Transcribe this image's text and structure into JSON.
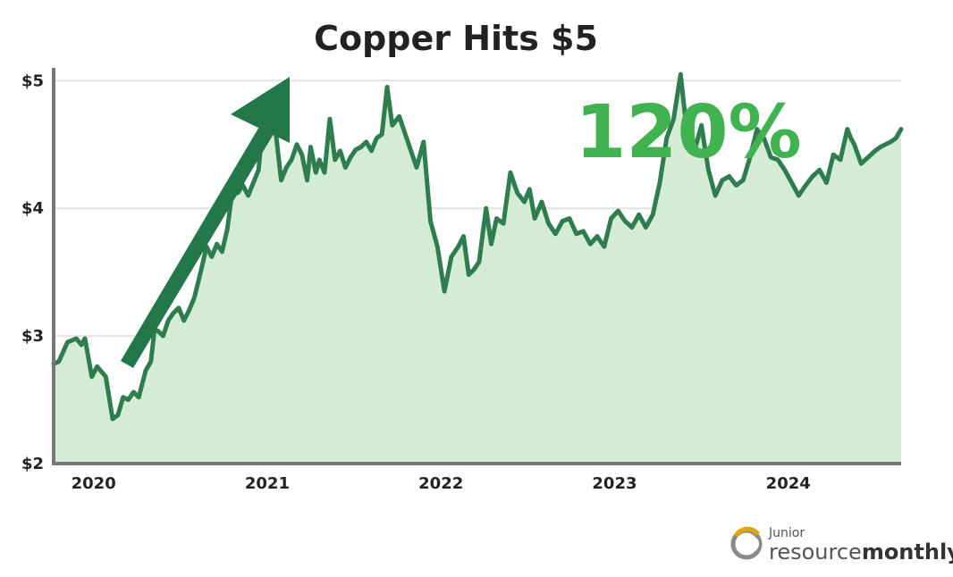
{
  "colors": {
    "line": "#2e7d4f",
    "fill": "#d4ecd3",
    "callout": "#3fb34f",
    "arrow": "#23784a",
    "axis": "#777777",
    "grid": "#e3e3e3"
  },
  "logo": {
    "line1": "Junior",
    "line2_regular": "resource",
    "line2_bold": "monthly",
    "icon": "ring-logo-icon"
  },
  "chart_data": {
    "type": "area",
    "title": "Copper Hits $5",
    "annotation": "120%",
    "xlabel": "",
    "ylabel": "",
    "x_ticks": [
      "2020",
      "2021",
      "2022",
      "2023",
      "2024"
    ],
    "x_tick_values": [
      2020.0,
      2021.0,
      2022.0,
      2023.0,
      2024.0
    ],
    "y_ticks": [
      "$2",
      "$3",
      "$4",
      "$5"
    ],
    "y_tick_values": [
      2,
      3,
      4,
      5
    ],
    "xlim": [
      2019.77,
      2024.65
    ],
    "ylim": [
      2,
      5.1
    ],
    "grid": true,
    "legend": "none",
    "series": [
      {
        "x": [
          2019.77,
          2019.8,
          2019.85,
          2019.9,
          2019.93,
          2019.95,
          2019.99,
          2020.02,
          2020.07,
          2020.11,
          2020.14,
          2020.17,
          2020.2,
          2020.23,
          2020.26,
          2020.3,
          2020.33,
          2020.35,
          2020.37,
          2020.4,
          2020.43,
          2020.46,
          2020.49,
          2020.52,
          2020.55,
          2020.58,
          2020.62,
          2020.65,
          2020.68,
          2020.71,
          2020.74,
          2020.77,
          2020.8,
          2020.83,
          2020.86,
          2020.89,
          2020.92,
          2020.95,
          2020.98,
          2021.02,
          2021.05,
          2021.08,
          2021.11,
          2021.14,
          2021.17,
          2021.2,
          2021.23,
          2021.25,
          2021.28,
          2021.3,
          2021.33,
          2021.36,
          2021.39,
          2021.42,
          2021.45,
          2021.48,
          2021.51,
          2021.54,
          2021.57,
          2021.6,
          2021.63,
          2021.66,
          2021.69,
          2021.72,
          2021.76,
          2021.79,
          2021.82,
          2021.86,
          2021.9,
          2021.94,
          2021.98,
          2022.02,
          2022.06,
          2022.1,
          2022.13,
          2022.16,
          2022.19,
          2022.22,
          2022.26,
          2022.29,
          2022.32,
          2022.36,
          2022.4,
          2022.44,
          2022.48,
          2022.51,
          2022.54,
          2022.58,
          2022.62,
          2022.66,
          2022.7,
          2022.74,
          2022.78,
          2022.82,
          2022.86,
          2022.9,
          2022.94,
          2022.98,
          2023.02,
          2023.06,
          2023.1,
          2023.14,
          2023.18,
          2023.22,
          2023.26,
          2023.3,
          2023.34,
          2023.38,
          2023.42,
          2023.46,
          2023.5,
          2023.54,
          2023.58,
          2023.62,
          2023.66,
          2023.7,
          2023.74,
          2023.78,
          2023.82,
          2023.86,
          2023.9,
          2023.94,
          2023.98,
          2024.02,
          2024.06,
          2024.1,
          2024.14,
          2024.18,
          2024.22,
          2024.26,
          2024.3,
          2024.34,
          2024.36,
          2024.38,
          2024.42,
          2024.46,
          2024.5,
          2024.53,
          2024.56,
          2024.59,
          2024.62,
          2024.65
        ],
        "values": [
          2.78,
          2.8,
          2.95,
          2.98,
          2.93,
          2.98,
          2.68,
          2.76,
          2.68,
          2.35,
          2.38,
          2.52,
          2.5,
          2.56,
          2.52,
          2.73,
          2.8,
          3.04,
          3.04,
          3.0,
          3.12,
          3.18,
          3.22,
          3.12,
          3.2,
          3.3,
          3.52,
          3.7,
          3.62,
          3.72,
          3.66,
          3.84,
          4.15,
          4.12,
          4.18,
          4.1,
          4.2,
          4.3,
          4.75,
          4.66,
          4.58,
          4.22,
          4.32,
          4.38,
          4.5,
          4.42,
          4.22,
          4.48,
          4.28,
          4.38,
          4.28,
          4.7,
          4.38,
          4.45,
          4.32,
          4.4,
          4.46,
          4.48,
          4.52,
          4.45,
          4.55,
          4.58,
          4.95,
          4.65,
          4.72,
          4.6,
          4.48,
          4.32,
          4.52,
          3.9,
          3.7,
          3.35,
          3.62,
          3.7,
          3.78,
          3.48,
          3.52,
          3.58,
          4.0,
          3.72,
          3.92,
          3.88,
          4.28,
          4.12,
          4.05,
          4.15,
          3.92,
          4.05,
          3.88,
          3.8,
          3.9,
          3.92,
          3.8,
          3.82,
          3.72,
          3.78,
          3.7,
          3.92,
          3.98,
          3.9,
          3.85,
          3.95,
          3.85,
          3.95,
          4.2,
          4.55,
          4.7,
          5.05,
          4.55,
          4.45,
          4.65,
          4.3,
          4.1,
          4.22,
          4.25,
          4.18,
          4.22,
          4.4,
          4.62,
          4.55,
          4.4,
          4.38,
          4.3,
          4.2,
          4.1,
          4.18,
          4.25,
          4.3,
          4.2,
          4.42,
          4.38,
          4.62,
          4.55,
          4.5,
          4.35,
          4.4,
          4.45,
          4.48,
          4.5,
          4.52,
          4.55,
          4.62
        ]
      }
    ]
  }
}
